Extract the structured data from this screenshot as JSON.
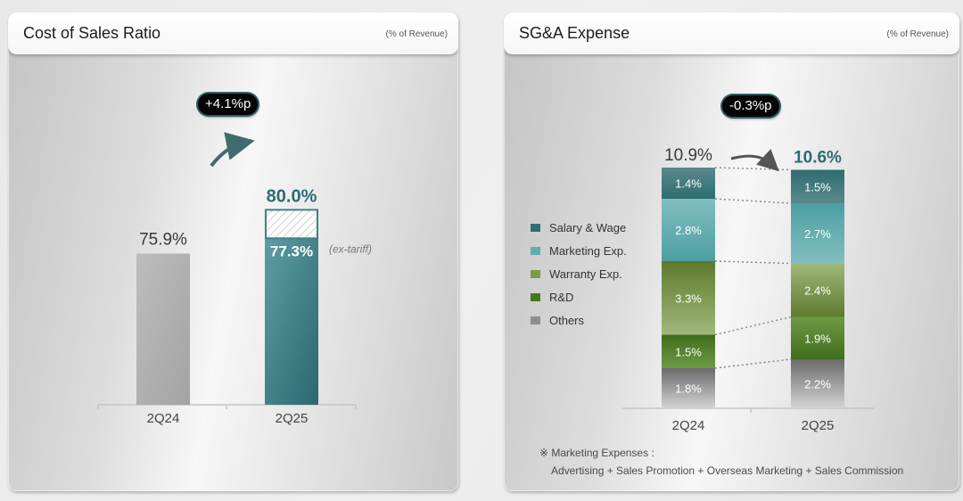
{
  "left_panel": {
    "title": "Cost of Sales Ratio",
    "unit": "(% of Revenue)",
    "change_badge": "+4.1%p"
  },
  "right_panel": {
    "title": "SG&A Expense",
    "unit": "(% of Revenue)",
    "change_badge": "-0.3%p",
    "footnote_title": "※ Marketing Expenses :",
    "footnote_body": "Advertising + Sales Promotion + Overseas Marketing + Sales Commission"
  },
  "chart_data": [
    {
      "type": "bar",
      "title": "Cost of Sales Ratio",
      "ylabel": "% of Revenue",
      "categories": [
        "2Q24",
        "2Q25"
      ],
      "values": [
        75.9,
        80.0
      ],
      "value_labels": [
        "75.9%",
        "80.0%"
      ],
      "sub_values": [
        null,
        77.3
      ],
      "sub_value_labels": [
        null,
        "77.3%"
      ],
      "sub_value_note": "(ex-tariff)",
      "change_annotation": "+4.1%p",
      "colors": {
        "2Q24": "#b3b3b3",
        "2Q25": "#3f7f86",
        "highlight_label": "#2f6b72"
      }
    },
    {
      "type": "bar",
      "stacked": true,
      "title": "SG&A Expense",
      "ylabel": "% of Revenue",
      "categories": [
        "2Q24",
        "2Q25"
      ],
      "totals": [
        10.9,
        10.6
      ],
      "total_labels": [
        "10.9%",
        "10.6%"
      ],
      "change_annotation": "-0.3%p",
      "series": [
        {
          "name": "Salary & Wage",
          "values": [
            1.4,
            1.5
          ],
          "labels": [
            "1.4%",
            "1.5%"
          ],
          "color": "#2e6f73"
        },
        {
          "name": "Marketing Exp.",
          "values": [
            2.8,
            2.7
          ],
          "labels": [
            "2.8%",
            "2.7%"
          ],
          "color": "#4fa2a6"
        },
        {
          "name": "Warranty Exp.",
          "values": [
            3.3,
            2.4
          ],
          "labels": [
            "3.3%",
            "2.4%"
          ],
          "color": "#6f8f3a"
        },
        {
          "name": "R&D",
          "values": [
            1.5,
            1.9
          ],
          "labels": [
            "1.5%",
            "1.9%"
          ],
          "color": "#4a7d22"
        },
        {
          "name": "Others",
          "values": [
            1.8,
            2.2
          ],
          "labels": [
            "1.8%",
            "2.2%"
          ],
          "color": "#8e8e8e"
        }
      ],
      "legend_position": "left"
    }
  ]
}
